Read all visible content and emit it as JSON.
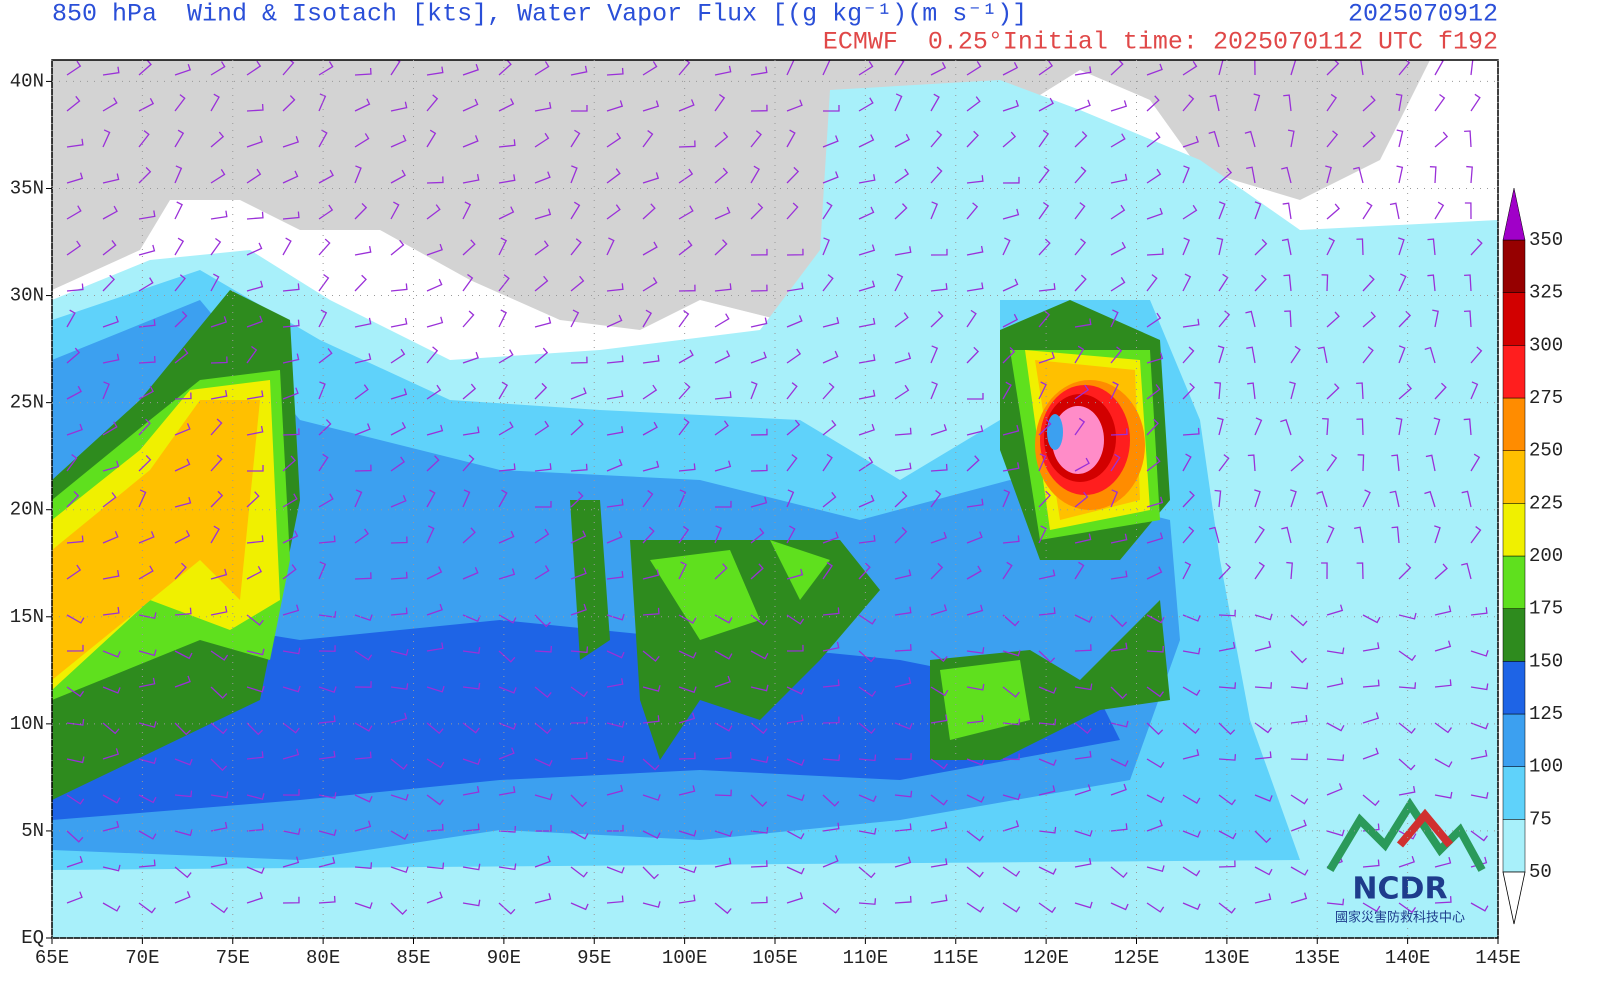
{
  "header": {
    "title": "850 hPa  Wind & Isotach [kts], Water Vapor Flux [(g kg⁻¹)(m s⁻¹)]",
    "valid_time": "2025070912",
    "subtitle": "ECMWF  0.25°Initial time: 2025070112 UTC f192"
  },
  "map": {
    "xlim": [
      65,
      145
    ],
    "ylim": [
      0,
      41
    ],
    "xticks": [
      {
        "value": 65,
        "label": "65E"
      },
      {
        "value": 70,
        "label": "70E"
      },
      {
        "value": 75,
        "label": "75E"
      },
      {
        "value": 80,
        "label": "80E"
      },
      {
        "value": 85,
        "label": "85E"
      },
      {
        "value": 90,
        "label": "90E"
      },
      {
        "value": 95,
        "label": "95E"
      },
      {
        "value": 100,
        "label": "100E"
      },
      {
        "value": 105,
        "label": "105E"
      },
      {
        "value": 110,
        "label": "110E"
      },
      {
        "value": 115,
        "label": "115E"
      },
      {
        "value": 120,
        "label": "120E"
      },
      {
        "value": 125,
        "label": "125E"
      },
      {
        "value": 130,
        "label": "130E"
      },
      {
        "value": 135,
        "label": "135E"
      },
      {
        "value": 140,
        "label": "140E"
      },
      {
        "value": 145,
        "label": "145E"
      }
    ],
    "yticks": [
      {
        "value": 0,
        "label": "EQ"
      },
      {
        "value": 5,
        "label": "5N"
      },
      {
        "value": 10,
        "label": "10N"
      },
      {
        "value": 15,
        "label": "15N"
      },
      {
        "value": 20,
        "label": "20N"
      },
      {
        "value": 25,
        "label": "25N"
      },
      {
        "value": 30,
        "label": "30N"
      },
      {
        "value": 35,
        "label": "35N"
      },
      {
        "value": 40,
        "label": "40N"
      }
    ],
    "grid": true
  },
  "colorbar": {
    "levels": [
      50,
      75,
      100,
      125,
      150,
      175,
      200,
      225,
      250,
      275,
      300,
      325,
      350
    ],
    "under_color": "#ffffff",
    "band_colors": [
      "#a8f0fa",
      "#5fd2fa",
      "#3ca0f0",
      "#1e64e6",
      "#2e8b1e",
      "#5fe01e",
      "#f0f000",
      "#ffc000",
      "#ff8c00",
      "#ff1e1e",
      "#d20000",
      "#960000"
    ],
    "over_color": "#a000c8"
  },
  "logo": {
    "name": "NCDR",
    "org": "國家災害防救科技中心"
  }
}
